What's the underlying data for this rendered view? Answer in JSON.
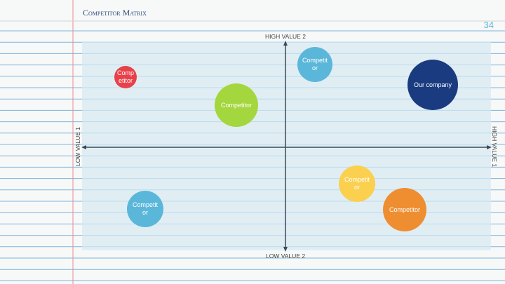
{
  "header": {
    "title": "Competitor Matrix",
    "page_number": "34"
  },
  "axes": {
    "top": "HIGH VALUE 2",
    "bottom": "LOW VALUE 2",
    "left": "LOW VALUE 1",
    "right": "HIGH VALUE 1"
  },
  "nodes": [
    {
      "label": "Competitor"
    },
    {
      "label": "Competitor"
    },
    {
      "label": "Competitor"
    },
    {
      "label": "Our company"
    },
    {
      "label": "Competitor"
    },
    {
      "label": "Competitor"
    },
    {
      "label": "Competitor"
    }
  ]
}
